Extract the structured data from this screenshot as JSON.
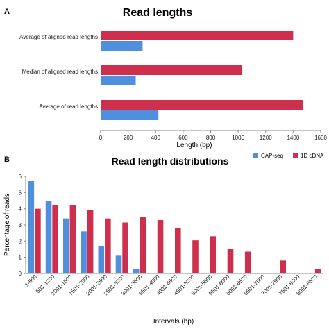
{
  "panels": {
    "a": {
      "letter": "A"
    },
    "b": {
      "letter": "B"
    }
  },
  "colors": {
    "cap": "#4f8fde",
    "dna": "#cd2f4d",
    "axis": "#8a8a8a",
    "text": "#1a1a1a"
  },
  "chart_data": [
    {
      "type": "bar",
      "orientation": "horizontal",
      "title": "Read lengths",
      "xlabel": "Length (bp)",
      "ylabel": "",
      "categories": [
        "Average of aligned read lengths",
        "Median of aligned read lengths",
        "Average of read lengths"
      ],
      "series": [
        {
          "name": "1D cDNA",
          "color": "#cd2f4d",
          "values": [
            1400,
            1030,
            1470
          ]
        },
        {
          "name": "CAP-seq",
          "color": "#4f8fde",
          "values": [
            305,
            255,
            420
          ]
        }
      ],
      "xlim": [
        0,
        1600
      ],
      "xticks": [
        0,
        200,
        400,
        600,
        800,
        1000,
        1200,
        1400,
        1600
      ],
      "grid": false,
      "legend": "none"
    },
    {
      "type": "bar",
      "title": "Read length distributions",
      "xlabel": "Intervals (bp)",
      "ylabel": "Percentage of reads",
      "categories": [
        "1-500",
        "501-1000",
        "1001-1500",
        "1501-2000",
        "2001-2500",
        "2501-3000",
        "3001-3500",
        "3501-4000",
        "4001-4500",
        "4501-5000",
        "5001-5500",
        "5501-6000",
        "6001-6500",
        "6501-7000",
        "7001-7500",
        "7501-8000",
        "8001-8500"
      ],
      "series": [
        {
          "name": "CAP-seq",
          "color": "#4f8fde",
          "values": [
            5.7,
            4.5,
            3.4,
            2.6,
            1.7,
            1.1,
            0.3,
            0,
            0,
            0,
            0,
            0,
            0,
            0,
            0,
            0,
            0
          ]
        },
        {
          "name": "1D cDNA",
          "color": "#cd2f4d",
          "values": [
            4.0,
            4.2,
            4.2,
            3.9,
            3.4,
            3.15,
            3.5,
            3.3,
            2.8,
            2.05,
            2.3,
            1.5,
            1.35,
            0,
            0.8,
            0,
            0.3
          ]
        }
      ],
      "ylim": [
        0,
        6
      ],
      "yticks": [
        0,
        1,
        2,
        3,
        4,
        5,
        6
      ],
      "grid": false,
      "legend": "top-right"
    }
  ]
}
